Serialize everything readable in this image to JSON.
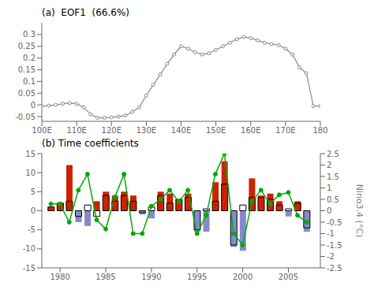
{
  "chart_data": [
    {
      "type": "line",
      "title": "(a)  EOF1  (66.6%)",
      "x": [
        100,
        102,
        104,
        106,
        108,
        110,
        112,
        114,
        116,
        118,
        120,
        122,
        124,
        126,
        128,
        130,
        132,
        134,
        136,
        138,
        140,
        142,
        144,
        146,
        148,
        150,
        152,
        154,
        156,
        158,
        160,
        162,
        164,
        166,
        168,
        170,
        172,
        174,
        176,
        178,
        180
      ],
      "series": [
        {
          "type": "line",
          "color": "#888888",
          "marker": "circle",
          "values": [
            -0.005,
            -0.003,
            0.0,
            0.005,
            0.008,
            0.005,
            -0.01,
            -0.04,
            -0.055,
            -0.055,
            -0.053,
            -0.05,
            -0.045,
            -0.03,
            -0.01,
            0.04,
            0.085,
            0.13,
            0.175,
            0.215,
            0.25,
            0.24,
            0.225,
            0.215,
            0.22,
            0.235,
            0.25,
            0.265,
            0.28,
            0.29,
            0.285,
            0.275,
            0.265,
            0.26,
            0.255,
            0.24,
            0.215,
            0.16,
            0.135,
            -0.005,
            -0.005
          ]
        }
      ],
      "xlim": [
        100,
        180
      ],
      "xticks": [
        {
          "value": 100,
          "label": "100E"
        },
        {
          "value": 110,
          "label": "110E"
        },
        {
          "value": 120,
          "label": "120E"
        },
        {
          "value": 130,
          "label": "130E"
        },
        {
          "value": 140,
          "label": "140E"
        },
        {
          "value": 150,
          "label": "150E"
        },
        {
          "value": 160,
          "label": "160E"
        },
        {
          "value": 170,
          "label": "170E"
        },
        180
      ],
      "ylim": [
        -0.07,
        0.35
      ],
      "yticks": [
        -0.05,
        0.0,
        0.05,
        0.1,
        0.15,
        0.2,
        0.25,
        0.3
      ],
      "grid": false
    },
    {
      "type": "bar",
      "title": "(b) Time coefficients",
      "x": [
        1979,
        1980,
        1981,
        1982,
        1983,
        1984,
        1985,
        1986,
        1987,
        1988,
        1989,
        1990,
        1991,
        1992,
        1993,
        1994,
        1995,
        1996,
        1997,
        1998,
        1999,
        2000,
        2001,
        2002,
        2003,
        2004,
        2005,
        2006,
        2007
      ],
      "series": [
        {
          "type": "bar",
          "colors": [
            "#cc2200",
            "#cc2200",
            "#cc2200",
            "#8888cc",
            "#8888cc",
            "#cc2200",
            "#cc2200",
            "#cc2200",
            "#cc2200",
            "#cc2200",
            "#8888cc",
            "#8888cc",
            "#cc2200",
            "#cc2200",
            "#cc2200",
            "#cc2200",
            "#8888cc",
            "#8888cc",
            "#cc2200",
            "#cc2200",
            "#8888cc",
            "#8888cc",
            "#cc2200",
            "#cc2200",
            "#cc2200",
            "#cc2200",
            "#8888cc",
            "#cc2200",
            "#8888cc"
          ],
          "values": [
            1.0,
            2.0,
            12.0,
            -3.0,
            -4.0,
            2.5,
            5.0,
            4.0,
            5.0,
            4.0,
            -1.0,
            -2.0,
            5.0,
            4.5,
            3.0,
            4.5,
            -5.5,
            -5.5,
            7.5,
            13.0,
            -9.5,
            -10.5,
            8.5,
            4.0,
            4.5,
            2.5,
            -1.5,
            2.5,
            -5.5
          ]
        },
        {
          "type": "bar",
          "color": "#000000",
          "values": [
            1.0,
            2.0,
            2.5,
            -1.5,
            1.5,
            -1.5,
            4.0,
            2.5,
            4.0,
            2.5,
            -0.5,
            1.0,
            4.0,
            2.0,
            3.0,
            3.5,
            -5.0,
            0.5,
            2.5,
            7.0,
            -9.0,
            1.5,
            3.5,
            3.5,
            3.0,
            1.5,
            0.5,
            2.0,
            -4.5
          ]
        },
        {
          "type": "line",
          "color": "#00aa00",
          "marker": "circle",
          "axis": "y2",
          "values": [
            0.3,
            0.3,
            -0.5,
            0.9,
            1.6,
            -0.4,
            -0.8,
            0.6,
            1.6,
            -1.0,
            -1.0,
            0.2,
            0.5,
            0.9,
            0.4,
            0.9,
            -1.0,
            -0.2,
            1.6,
            2.5,
            -1.0,
            -1.5,
            0.4,
            0.9,
            0.3,
            0.7,
            0.8,
            -0.2,
            -0.5
          ]
        }
      ],
      "xlim": [
        1978.0,
        2008.5
      ],
      "xticks": [
        1980,
        1985,
        1990,
        1995,
        2000,
        2005
      ],
      "ylim": [
        -15,
        15
      ],
      "yticks": [
        -15,
        -10,
        -5,
        0,
        5,
        10,
        15
      ],
      "y2lim": [
        -2.5,
        2.5
      ],
      "y2ticks": [
        -2.5,
        -2,
        -1.5,
        -1,
        -0.5,
        0,
        0.5,
        1,
        1.5,
        2,
        2.5
      ],
      "y2label": "Nino3.4 (°C)",
      "grid": false
    }
  ]
}
